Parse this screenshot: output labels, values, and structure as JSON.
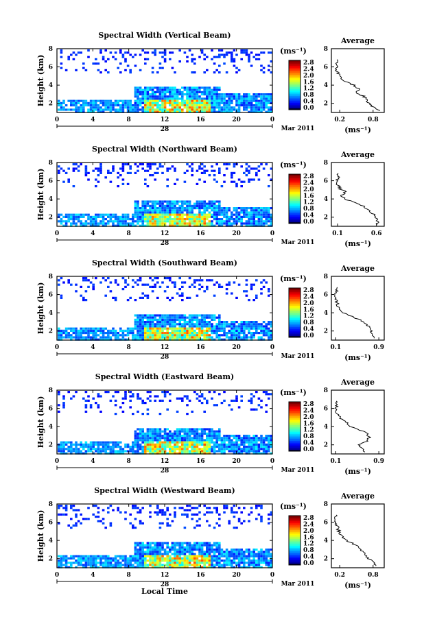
{
  "chart_data": [
    {
      "type": "heatmap",
      "title": "Spectral Width (Vertical Beam)",
      "ylabel": "Height (km)",
      "yticks": [
        "2",
        "4",
        "6",
        "8"
      ],
      "ylim": [
        1,
        8
      ],
      "xticks": [
        "0",
        "4",
        "8",
        "12",
        "16",
        "20",
        "0"
      ],
      "xlim": [
        0,
        24
      ],
      "date_day": "28",
      "date_month": "Mar 2011",
      "colorbar_unit": "(ms⁻¹)",
      "colorbar_ticks": [
        "2.8",
        "2.4",
        "2.0",
        "1.6",
        "1.2",
        "0.8",
        "0.4",
        "0.0"
      ],
      "clim": [
        0,
        2.8
      ],
      "average": {
        "title": "Average",
        "xlabel": "(ms⁻¹)",
        "xticks": [
          "0.2",
          "0.8"
        ],
        "yticks": [
          "2",
          "4",
          "6",
          "8"
        ],
        "xlim": [
          0.05,
          1.0
        ],
        "ylim": [
          1,
          8
        ],
        "profile_height_km": [
          1.2,
          1.6,
          2.0,
          2.4,
          2.8,
          3.2,
          3.6,
          4.0,
          4.4,
          4.8,
          5.2,
          5.6,
          6.0,
          6.4,
          6.8
        ],
        "profile_width": [
          0.92,
          0.8,
          0.72,
          0.68,
          0.62,
          0.5,
          0.55,
          0.45,
          0.3,
          0.22,
          0.18,
          0.15,
          0.14,
          0.13,
          0.15
        ]
      }
    },
    {
      "type": "heatmap",
      "title": "Spectral Width (Northward Beam)",
      "ylabel": "Height (km)",
      "yticks": [
        "2",
        "4",
        "6",
        "8"
      ],
      "ylim": [
        1,
        8
      ],
      "xticks": [
        "0",
        "4",
        "8",
        "12",
        "16",
        "20",
        "0"
      ],
      "xlim": [
        0,
        24
      ],
      "date_day": "28",
      "date_month": "Mar 2011",
      "colorbar_unit": "(ms⁻¹)",
      "colorbar_ticks": [
        "2.8",
        "2.4",
        "2.0",
        "1.6",
        "1.2",
        "0.8",
        "0.4",
        "0.0"
      ],
      "clim": [
        0,
        2.8
      ],
      "average": {
        "title": "Average",
        "xlabel": "(ms⁻¹)",
        "xticks": [
          "0.1",
          "0.6"
        ],
        "yticks": [
          "2",
          "4",
          "6",
          "8"
        ],
        "xlim": [
          0.02,
          0.7
        ],
        "ylim": [
          1,
          8
        ],
        "profile_height_km": [
          1.2,
          1.6,
          2.0,
          2.4,
          2.8,
          3.2,
          3.6,
          4.0,
          4.4,
          4.8,
          5.2,
          5.6,
          6.0,
          6.4,
          6.8
        ],
        "profile_width": [
          0.62,
          0.6,
          0.58,
          0.55,
          0.5,
          0.42,
          0.3,
          0.2,
          0.16,
          0.2,
          0.12,
          0.1,
          0.09,
          0.1,
          0.11
        ]
      }
    },
    {
      "type": "heatmap",
      "title": "Spectral Width (Southward Beam)",
      "ylabel": "Height (km)",
      "yticks": [
        "2",
        "4",
        "6",
        "8"
      ],
      "ylim": [
        1,
        8
      ],
      "xticks": [
        "0",
        "4",
        "8",
        "12",
        "16",
        "20",
        "0"
      ],
      "xlim": [
        0,
        24
      ],
      "date_day": "28",
      "date_month": "Mar 2011",
      "colorbar_unit": "(ms⁻¹)",
      "colorbar_ticks": [
        "2.8",
        "2.4",
        "2.0",
        "1.6",
        "1.2",
        "0.8",
        "0.4",
        "0.0"
      ],
      "clim": [
        0,
        2.8
      ],
      "average": {
        "title": "Average",
        "xlabel": "(ms⁻¹)",
        "xticks": [
          "0.1",
          "0.9"
        ],
        "yticks": [
          "2",
          "4",
          "6",
          "8"
        ],
        "xlim": [
          0.02,
          1.0
        ],
        "ylim": [
          1,
          8
        ],
        "profile_height_km": [
          1.2,
          1.6,
          2.0,
          2.4,
          2.8,
          3.2,
          3.6,
          4.0,
          4.4,
          4.8,
          5.2,
          5.6,
          6.0,
          6.4,
          6.8
        ],
        "profile_width": [
          0.82,
          0.8,
          0.75,
          0.72,
          0.65,
          0.55,
          0.4,
          0.25,
          0.18,
          0.14,
          0.12,
          0.1,
          0.1,
          0.12,
          0.13
        ]
      }
    },
    {
      "type": "heatmap",
      "title": "Spectral Width (Eastward Beam)",
      "ylabel": "Height (km)",
      "yticks": [
        "2",
        "4",
        "6",
        "8"
      ],
      "ylim": [
        1,
        8
      ],
      "xticks": [
        "0",
        "4",
        "8",
        "12",
        "16",
        "20",
        "0"
      ],
      "xlim": [
        0,
        24
      ],
      "date_day": "28",
      "date_month": "Mar 2011",
      "colorbar_unit": "(ms⁻¹)",
      "colorbar_ticks": [
        "2.8",
        "2.4",
        "2.0",
        "1.6",
        "1.2",
        "0.8",
        "0.4",
        "0.0"
      ],
      "clim": [
        0,
        2.8
      ],
      "average": {
        "title": "Average",
        "xlabel": "(ms⁻¹)",
        "xticks": [
          "0.1",
          "0.9"
        ],
        "yticks": [
          "2",
          "4",
          "6",
          "8"
        ],
        "xlim": [
          0.02,
          1.0
        ],
        "ylim": [
          1,
          8
        ],
        "profile_height_km": [
          1.2,
          1.6,
          2.0,
          2.4,
          2.8,
          3.2,
          3.6,
          4.0,
          4.4,
          4.8,
          5.2,
          5.6,
          6.0,
          6.4,
          6.8
        ],
        "profile_width": [
          0.65,
          0.6,
          0.5,
          0.7,
          0.72,
          0.7,
          0.55,
          0.38,
          0.3,
          0.2,
          0.15,
          0.12,
          0.1,
          0.12,
          0.11
        ]
      }
    },
    {
      "type": "heatmap",
      "title": "Spectral Width (Westward Beam)",
      "ylabel": "Height (km)",
      "yticks": [
        "2",
        "4",
        "6",
        "8"
      ],
      "ylim": [
        1,
        8
      ],
      "xticks": [
        "0",
        "4",
        "8",
        "12",
        "16",
        "20",
        "0"
      ],
      "xlim": [
        0,
        24
      ],
      "date_day": "28",
      "date_month": "Mar 2011",
      "colorbar_unit": "(ms⁻¹)",
      "colorbar_ticks": [
        "2.8",
        "2.4",
        "2.0",
        "1.6",
        "1.2",
        "0.8",
        "0.4",
        "0.0"
      ],
      "clim": [
        0,
        2.8
      ],
      "xlabel": "Local Time",
      "average": {
        "title": "Average",
        "xlabel": "(ms⁻¹)",
        "xticks": [
          "0.2",
          "0.8"
        ],
        "yticks": [
          "2",
          "4",
          "6",
          "8"
        ],
        "xlim": [
          0.05,
          1.0
        ],
        "ylim": [
          1,
          8
        ],
        "profile_height_km": [
          1.2,
          1.6,
          2.0,
          2.4,
          2.8,
          3.2,
          3.6,
          4.0,
          4.4,
          4.8,
          5.2,
          5.6,
          6.0,
          6.4,
          6.8
        ],
        "profile_width": [
          0.85,
          0.8,
          0.72,
          0.68,
          0.62,
          0.55,
          0.45,
          0.32,
          0.25,
          0.2,
          0.17,
          0.15,
          0.14,
          0.12,
          0.14
        ]
      }
    }
  ]
}
